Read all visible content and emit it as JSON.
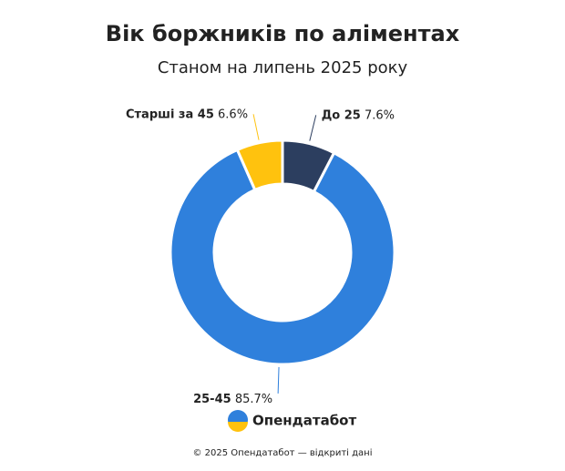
{
  "chart_data": {
    "type": "pie",
    "title": "Вік боржників по аліментах",
    "subtitle": "Станом на липень 2025 року",
    "categories": [
      "До 25",
      "25-45",
      "Старші за 45"
    ],
    "values": [
      7.6,
      85.7,
      6.6
    ],
    "value_labels": [
      "7.6%",
      "85.7%",
      "6.6%"
    ],
    "colors": [
      "#2c3e5f",
      "#2f80dc",
      "#ffc20e"
    ],
    "brand": "Опендатабот",
    "footer": "© 2025 Опендатабот — відкриті дані"
  }
}
